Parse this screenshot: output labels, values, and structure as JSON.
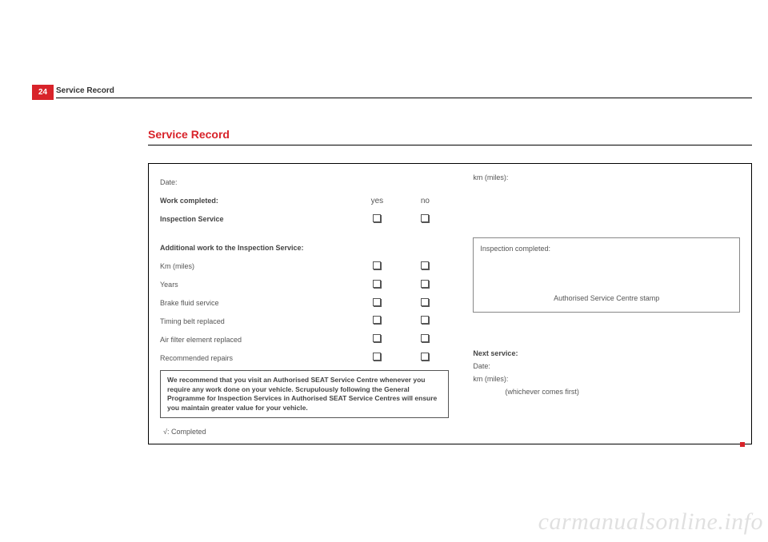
{
  "page_number": "24",
  "header": "Service Record",
  "title": "Service Record",
  "colors": {
    "accent": "#d8232a",
    "text": "#4a4a4a",
    "border": "#000000"
  },
  "left": {
    "date_label": "Date:",
    "work_completed": "Work completed:",
    "yes": "yes",
    "no": "no",
    "inspection_service": "Inspection Service",
    "additional_header": "Additional work to the Inspection Service:",
    "items": [
      "Km (miles)",
      "Years",
      "Brake fluid service",
      "Timing belt replaced",
      "Air filter element replaced",
      "Recommended repairs"
    ],
    "recommend": "We recommend that you visit an Authorised SEAT Service Centre whenever you require any work done on your vehicle.  Scrupulously following the General Programme for Inspection Services in Authorised SEAT Service Centres will ensure you maintain greater value for your vehicle.",
    "completed_legend": "√: Completed"
  },
  "right": {
    "km_label": "km (miles):",
    "stamp_title": "Inspection completed:",
    "stamp_text": "Authorised Service Centre stamp",
    "next_service": "Next service:",
    "next_date": "Date:",
    "next_km": "km (miles):",
    "whichever": "(whichever comes first)"
  },
  "watermark": "carmanualsonline.info"
}
